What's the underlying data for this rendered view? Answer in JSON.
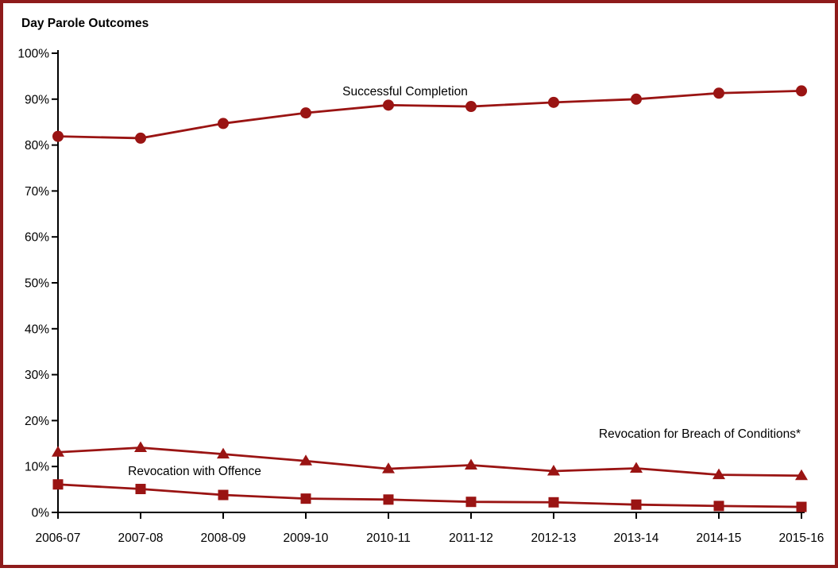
{
  "title": "Day Parole Outcomes",
  "colors": {
    "series": "#9a1413",
    "frame_border": "#8e1b1b",
    "axis": "#000000",
    "background": "#ffffff",
    "text": "#000000"
  },
  "chart_data": {
    "type": "line",
    "title": "Day Parole Outcomes",
    "categories": [
      "2006-07",
      "2007-08",
      "2008-09",
      "2009-10",
      "2010-11",
      "2011-12",
      "2012-13",
      "2013-14",
      "2014-15",
      "2015-16"
    ],
    "series": [
      {
        "name": "Successful Completion",
        "marker": "circle",
        "values": [
          81.9,
          81.5,
          84.7,
          87.0,
          88.7,
          88.4,
          89.3,
          90.0,
          91.3,
          91.8
        ]
      },
      {
        "name": "Revocation for Breach of Conditions*",
        "marker": "triangle",
        "values": [
          13.1,
          14.1,
          12.7,
          11.2,
          9.5,
          10.3,
          9.0,
          9.6,
          8.2,
          8.0
        ]
      },
      {
        "name": "Revocation with Offence",
        "marker": "square",
        "values": [
          6.1,
          5.1,
          3.8,
          3.0,
          2.8,
          2.3,
          2.2,
          1.7,
          1.4,
          1.2
        ]
      }
    ],
    "xlabel": "",
    "ylabel": "",
    "ylim": [
      0,
      100
    ],
    "y_tick_step": 10,
    "y_tick_labels": [
      "0%",
      "10%",
      "20%",
      "30%",
      "40%",
      "50%",
      "60%",
      "70%",
      "80%",
      "90%",
      "100%"
    ],
    "grid": false,
    "legend": "inline-annotations"
  }
}
